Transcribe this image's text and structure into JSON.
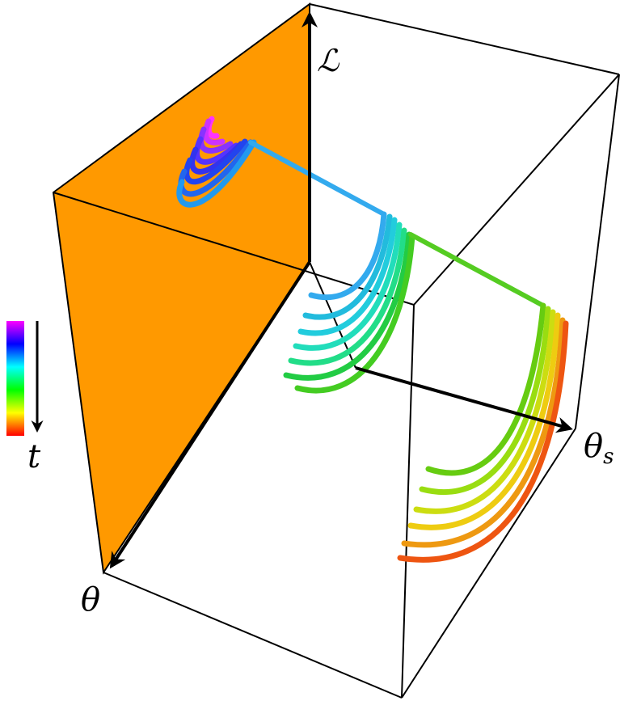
{
  "figure": {
    "axes": {
      "vertical": {
        "label": "ℒ"
      },
      "right": {
        "label": "θ",
        "subscript": "s"
      },
      "left": {
        "label": "θ"
      }
    },
    "colorbar": {
      "label": "t",
      "colors": [
        "#ff00ff",
        "#8000ff",
        "#0000ff",
        "#0080ff",
        "#00ffff",
        "#00ff80",
        "#00ff00",
        "#80ff00",
        "#ffff00",
        "#ff8000",
        "#ff0000"
      ],
      "direction": "top-to-bottom"
    },
    "plane_color": "#ff9900",
    "box_color": "#000000"
  }
}
